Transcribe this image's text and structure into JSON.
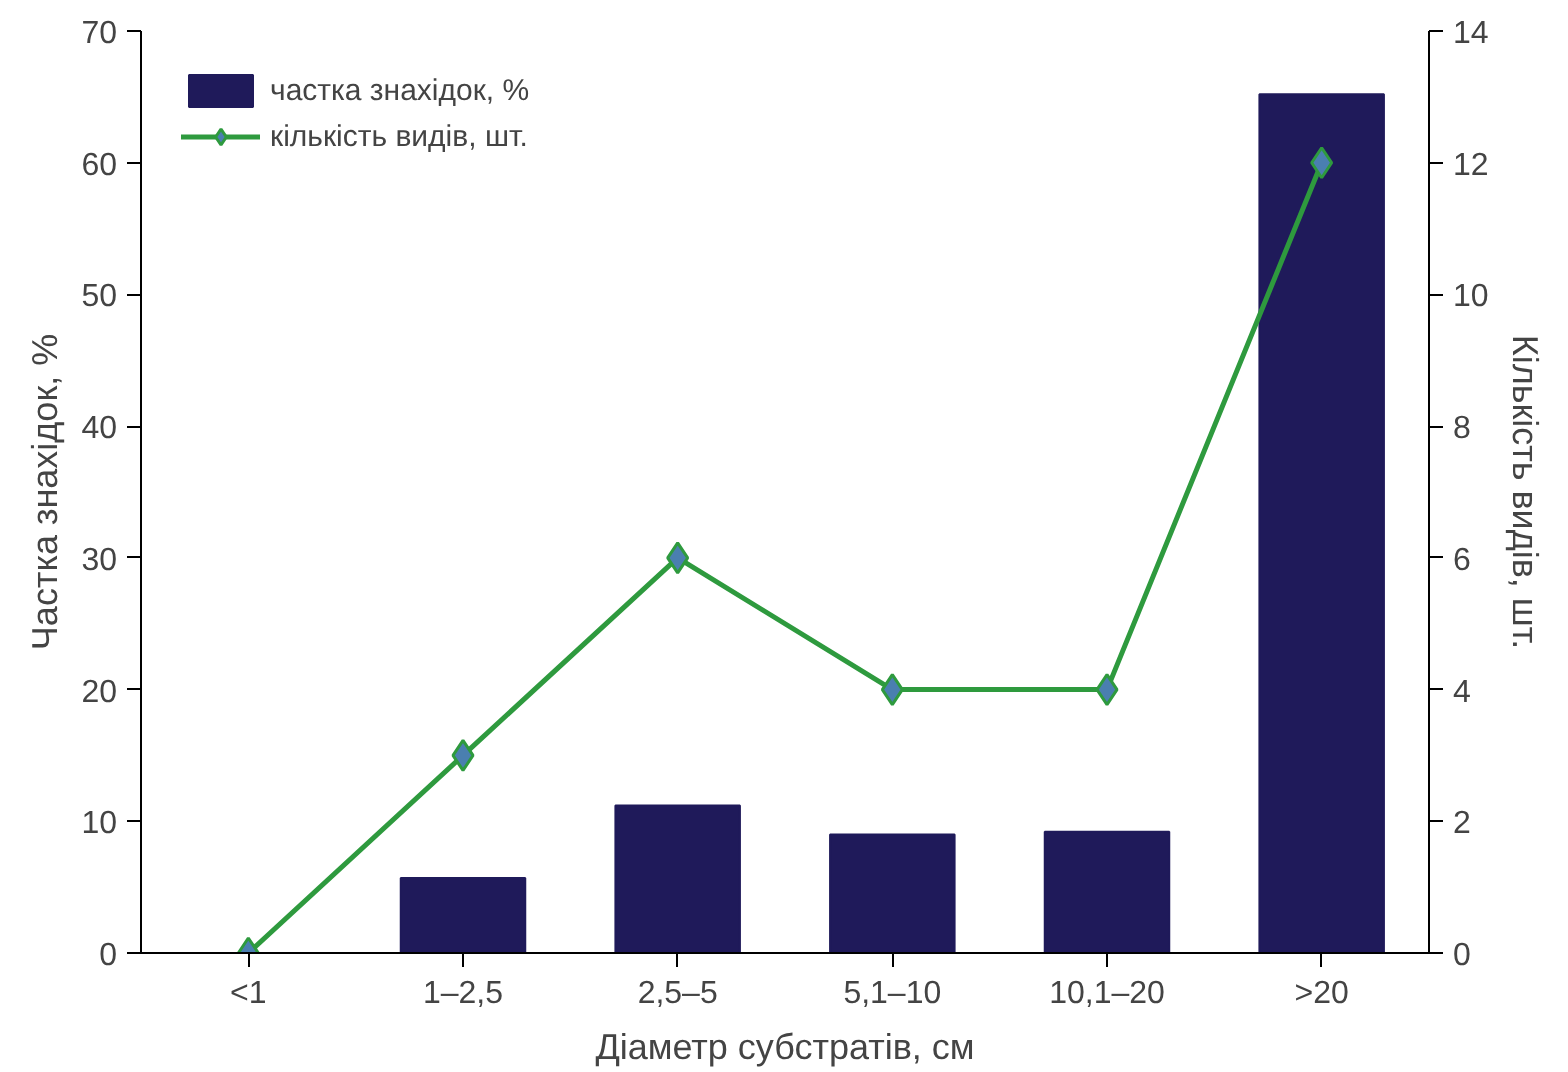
{
  "chart_data": {
    "type": "bar",
    "xlabel": "Діаметр субстратів, см",
    "ylabel": "Частка знахідок, %",
    "y2label": "Кількість видів, шт.",
    "categories": [
      "<1",
      "1–2,5",
      "2,5–5",
      "5,1–10",
      "10,1–20",
      ">20"
    ],
    "series": [
      {
        "name": "частка знахідок, %",
        "color": "#1f1a5a",
        "values": [
          0,
          5.7,
          11.2,
          9.0,
          9.2,
          65.2
        ]
      },
      {
        "name": "кількість видів, шт.",
        "type": "line",
        "axis": "y2",
        "color": "#2e9a3e",
        "marker": "diamond",
        "values": [
          0,
          3,
          6,
          4,
          4,
          12
        ]
      }
    ],
    "ylim": [
      0,
      70
    ],
    "yticks": [
      0,
      10,
      20,
      30,
      40,
      50,
      60,
      70
    ],
    "y2lim": [
      0,
      14
    ],
    "y2ticks": [
      0,
      2,
      4,
      6,
      8,
      10,
      12,
      14
    ],
    "grid": false,
    "legend": "top left"
  }
}
